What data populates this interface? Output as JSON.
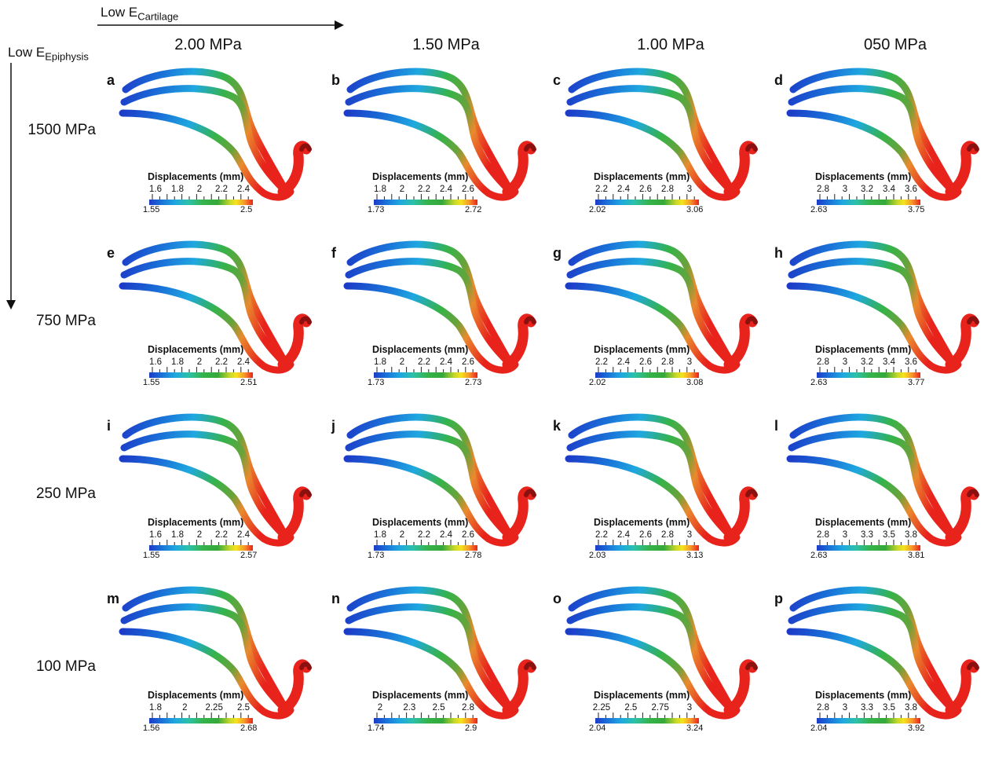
{
  "axis_x_label": {
    "main": "Low E",
    "sub": "Cartilage"
  },
  "axis_y_label": {
    "main": "Low E",
    "sub": "Epiphysis"
  },
  "columns": [
    "2.00 MPa",
    "1.50 MPa",
    "1.00 MPa",
    "050 MPa"
  ],
  "rows": [
    "1500 MPa",
    "750 MPa",
    "250 MPa",
    "100 MPa"
  ],
  "legend_title": "Displacements (mm)",
  "colors": {
    "blue": "#1c3cc8",
    "cyan": "#1fa8e0",
    "green": "#35b34a",
    "orange": "#e98a2e",
    "red": "#e8231c"
  },
  "panels": [
    {
      "letter": "a",
      "ticks": [
        "1.6",
        "1.8",
        "2",
        "2.2",
        "2.4"
      ],
      "min": "1.55",
      "max": "2.5"
    },
    {
      "letter": "b",
      "ticks": [
        "1.8",
        "2",
        "2.2",
        "2.4",
        "2.6"
      ],
      "min": "1.73",
      "max": "2.72"
    },
    {
      "letter": "c",
      "ticks": [
        "2.2",
        "2.4",
        "2.6",
        "2.8",
        "3"
      ],
      "min": "2.02",
      "max": "3.06"
    },
    {
      "letter": "d",
      "ticks": [
        "2.8",
        "3",
        "3.2",
        "3.4",
        "3.6"
      ],
      "min": "2.63",
      "max": "3.75"
    },
    {
      "letter": "e",
      "ticks": [
        "1.6",
        "1.8",
        "2",
        "2.2",
        "2.4"
      ],
      "min": "1.55",
      "max": "2.51"
    },
    {
      "letter": "f",
      "ticks": [
        "1.8",
        "2",
        "2.2",
        "2.4",
        "2.6"
      ],
      "min": "1.73",
      "max": "2.73"
    },
    {
      "letter": "g",
      "ticks": [
        "2.2",
        "2.4",
        "2.6",
        "2.8",
        "3"
      ],
      "min": "2.02",
      "max": "3.08"
    },
    {
      "letter": "h",
      "ticks": [
        "2.8",
        "3",
        "3.2",
        "3.4",
        "3.6"
      ],
      "min": "2.63",
      "max": "3.77"
    },
    {
      "letter": "i",
      "ticks": [
        "1.6",
        "1.8",
        "2",
        "2.2",
        "2.4"
      ],
      "min": "1.55",
      "max": "2.57"
    },
    {
      "letter": "j",
      "ticks": [
        "1.8",
        "2",
        "2.2",
        "2.4",
        "2.6"
      ],
      "min": "1.73",
      "max": "2.78"
    },
    {
      "letter": "k",
      "ticks": [
        "2.2",
        "2.4",
        "2.6",
        "2.8",
        "3"
      ],
      "min": "2.03",
      "max": "3.13"
    },
    {
      "letter": "l",
      "ticks": [
        "2.8",
        "3",
        "3.3",
        "3.5",
        "3.8"
      ],
      "min": "2.63",
      "max": "3.81"
    },
    {
      "letter": "m",
      "ticks": [
        "1.8",
        "2",
        "2.25",
        "2.5"
      ],
      "min": "1.56",
      "max": "2.68"
    },
    {
      "letter": "n",
      "ticks": [
        "2",
        "2.3",
        "2.5",
        "2.8"
      ],
      "min": "1.74",
      "max": "2.9"
    },
    {
      "letter": "o",
      "ticks": [
        "2.25",
        "2.5",
        "2.75",
        "3"
      ],
      "min": "2.04",
      "max": "3.24"
    },
    {
      "letter": "p",
      "ticks": [
        "2.8",
        "3",
        "3.3",
        "3.5",
        "3.8"
      ],
      "min": "2.04",
      "max": "3.92"
    }
  ]
}
